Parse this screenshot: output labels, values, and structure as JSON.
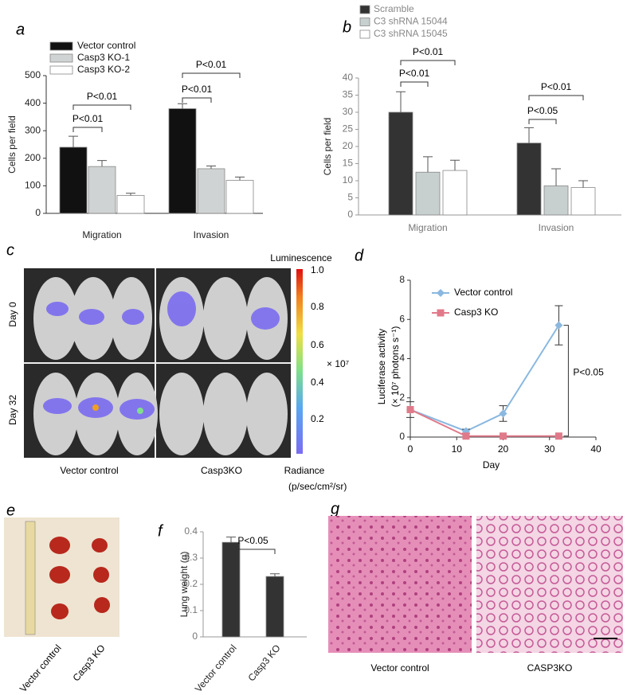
{
  "chart_data": [
    {
      "type": "bar",
      "panel": "a",
      "ylabel": "Cells per field",
      "categories": [
        "Migration",
        "Invasion"
      ],
      "series": [
        {
          "name": "Vector control",
          "color": "#111111",
          "values": [
            240,
            380
          ],
          "errors": [
            40,
            18
          ]
        },
        {
          "name": "Casp3 KO-1",
          "color": "#d0d3d3",
          "values": [
            170,
            162
          ],
          "errors": [
            22,
            10
          ]
        },
        {
          "name": "Casp3 KO-2",
          "color": "#ffffff",
          "values": [
            65,
            120
          ],
          "errors": [
            8,
            12
          ]
        }
      ],
      "ylim": [
        0,
        500
      ],
      "yticks": [
        0,
        100,
        200,
        300,
        400,
        500
      ],
      "annotations": [
        "P<0.01",
        "P<0.01",
        "P<0.01",
        "P<0.01"
      ]
    },
    {
      "type": "bar",
      "panel": "b",
      "ylabel": "Cells per field",
      "categories": [
        "Migration",
        "Invasion"
      ],
      "series": [
        {
          "name": "Scramble",
          "color": "#333333",
          "values": [
            30,
            21
          ],
          "errors": [
            6,
            4.5
          ]
        },
        {
          "name": "C3 shRNA 15044",
          "color": "#c8cfcf",
          "values": [
            12.5,
            8.5
          ],
          "errors": [
            4.5,
            5
          ]
        },
        {
          "name": "C3 shRNA 15045",
          "color": "#ffffff",
          "values": [
            13,
            8
          ],
          "errors": [
            3,
            2
          ]
        }
      ],
      "ylim": [
        0,
        40
      ],
      "yticks": [
        0,
        5,
        10,
        15,
        20,
        25,
        30,
        35,
        40
      ],
      "annotations": [
        "P<0.01",
        "P<0.01",
        "P<0.05",
        "P<0.01"
      ]
    },
    {
      "type": "line",
      "panel": "d",
      "xlabel": "Day",
      "ylabel": [
        "Luciferase activity",
        "(× 10⁷ photons s⁻¹)"
      ],
      "x": [
        0,
        12,
        20,
        32
      ],
      "series": [
        {
          "name": "Vector control",
          "color": "#8ab8e0",
          "marker": "diamond",
          "values": [
            1.4,
            0.3,
            1.2,
            5.7
          ],
          "errors": [
            0.4,
            0.1,
            0.4,
            1.0
          ]
        },
        {
          "name": "Casp3 KO",
          "color": "#e07a8a",
          "marker": "square",
          "values": [
            1.4,
            0.05,
            0.05,
            0.05
          ]
        }
      ],
      "xlim": [
        0,
        40
      ],
      "xticks": [
        0,
        10,
        20,
        30,
        40
      ],
      "ylim": [
        0,
        8
      ],
      "yticks": [
        0,
        2,
        4,
        6,
        8
      ],
      "annotations": [
        "P<0.05"
      ]
    },
    {
      "type": "bar",
      "panel": "f",
      "ylabel": "Lung weight (g)",
      "categories": [
        "Vector control",
        "Casp3 KO"
      ],
      "values": [
        0.36,
        0.23
      ],
      "errors": [
        0.02,
        0.01
      ],
      "color": "#333333",
      "ylim": [
        0,
        0.4
      ],
      "yticks": [
        0,
        0.1,
        0.2,
        0.3,
        0.4
      ],
      "annotations": [
        "P<0.05"
      ]
    }
  ],
  "panel_c": {
    "label": "c",
    "rows": [
      "Day 0",
      "Day 32"
    ],
    "columns": [
      "Vector control",
      "Casp3KO"
    ],
    "colorbar_title": "Luminescence",
    "colorbar_ticks": [
      "1.0",
      "0.8",
      "0.6",
      "0.4",
      "0.2"
    ],
    "colorbar_unit": "× 10⁷",
    "colorbar_caption": [
      "Radiance",
      "(p/sec/cm²/sr)"
    ]
  },
  "panel_e": {
    "label": "e",
    "columns": [
      "Vector control",
      "Casp3 KO"
    ]
  },
  "panel_g": {
    "label": "g",
    "columns": [
      "Vector control",
      "CASP3KO"
    ]
  }
}
